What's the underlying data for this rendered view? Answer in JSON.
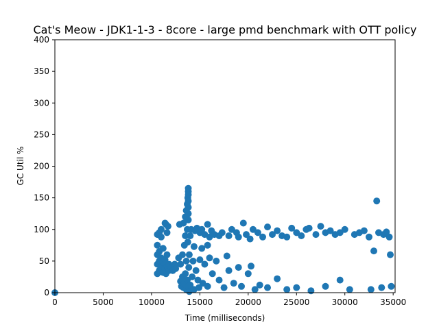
{
  "chart_data": {
    "type": "scatter",
    "title": "Cat's Meow - JDK1-1-3 - 8core -  large pmd benchmark with OTT policy",
    "xlabel": "Time (milliseconds)",
    "ylabel": "GC Util %",
    "xlim": [
      0,
      35200
    ],
    "ylim": [
      0,
      400
    ],
    "xticks": [
      0,
      5000,
      10000,
      15000,
      20000,
      25000,
      30000,
      35000
    ],
    "yticks": [
      0,
      50,
      100,
      150,
      200,
      250,
      300,
      350,
      400
    ],
    "grid": false,
    "legend": "none",
    "color": "#1f77b4",
    "series": [
      {
        "points": [
          [
            0,
            0
          ],
          [
            10600,
            30
          ],
          [
            10600,
            45
          ],
          [
            10600,
            60
          ],
          [
            10600,
            75
          ],
          [
            10600,
            92
          ],
          [
            10800,
            35
          ],
          [
            10800,
            50
          ],
          [
            10800,
            65
          ],
          [
            10800,
            95
          ],
          [
            11000,
            40
          ],
          [
            11000,
            55
          ],
          [
            11000,
            88
          ],
          [
            11000,
            100
          ],
          [
            11200,
            32
          ],
          [
            11200,
            48
          ],
          [
            11200,
            70
          ],
          [
            11400,
            38
          ],
          [
            11400,
            52
          ],
          [
            11400,
            110
          ],
          [
            11500,
            108
          ],
          [
            11500,
            30
          ],
          [
            11600,
            42
          ],
          [
            11600,
            60
          ],
          [
            11600,
            95
          ],
          [
            11700,
            105
          ],
          [
            11800,
            45
          ],
          [
            11800,
            35
          ],
          [
            12000,
            40
          ],
          [
            12200,
            35
          ],
          [
            12400,
            45
          ],
          [
            12500,
            38
          ],
          [
            12800,
            55
          ],
          [
            12900,
            108
          ],
          [
            13000,
            18
          ],
          [
            13000,
            45
          ],
          [
            13100,
            10
          ],
          [
            13200,
            25
          ],
          [
            13200,
            60
          ],
          [
            13300,
            110
          ],
          [
            13300,
            8
          ],
          [
            13400,
            15
          ],
          [
            13400,
            75
          ],
          [
            13500,
            30
          ],
          [
            13500,
            90
          ],
          [
            13500,
            120
          ],
          [
            13600,
            130
          ],
          [
            13600,
            50
          ],
          [
            13600,
            5
          ],
          [
            13700,
            140
          ],
          [
            13700,
            100
          ],
          [
            13700,
            20
          ],
          [
            13750,
            150
          ],
          [
            13750,
            80
          ],
          [
            13800,
            165
          ],
          [
            13800,
            160
          ],
          [
            13800,
            155
          ],
          [
            13800,
            145
          ],
          [
            13800,
            135
          ],
          [
            13800,
            125
          ],
          [
            13800,
            115
          ],
          [
            13800,
            10
          ],
          [
            13850,
            40
          ],
          [
            13900,
            60
          ],
          [
            13900,
            2
          ],
          [
            14000,
            12
          ],
          [
            14000,
            90
          ],
          [
            14100,
            100
          ],
          [
            14200,
            25
          ],
          [
            14300,
            50
          ],
          [
            14400,
            73
          ],
          [
            14400,
            5
          ],
          [
            14500,
            98
          ],
          [
            14600,
            35
          ],
          [
            14700,
            102
          ],
          [
            14800,
            20
          ],
          [
            14900,
            8
          ],
          [
            15000,
            95
          ],
          [
            15000,
            52
          ],
          [
            15200,
            70
          ],
          [
            15200,
            100
          ],
          [
            15300,
            15
          ],
          [
            15500,
            45
          ],
          [
            15500,
            92
          ],
          [
            15800,
            108
          ],
          [
            15800,
            75
          ],
          [
            15800,
            10
          ],
          [
            16000,
            55
          ],
          [
            16000,
            88
          ],
          [
            16200,
            98
          ],
          [
            16300,
            30
          ],
          [
            16500,
            92
          ],
          [
            16700,
            50
          ],
          [
            17000,
            90
          ],
          [
            17000,
            20
          ],
          [
            17300,
            95
          ],
          [
            17500,
            8
          ],
          [
            17800,
            58
          ],
          [
            18000,
            90
          ],
          [
            18000,
            35
          ],
          [
            18300,
            100
          ],
          [
            18500,
            15
          ],
          [
            18800,
            95
          ],
          [
            19000,
            40
          ],
          [
            19000,
            88
          ],
          [
            19300,
            10
          ],
          [
            19500,
            110
          ],
          [
            19800,
            92
          ],
          [
            20000,
            30
          ],
          [
            20200,
            85
          ],
          [
            20300,
            42
          ],
          [
            20500,
            100
          ],
          [
            20700,
            5
          ],
          [
            21000,
            95
          ],
          [
            21200,
            12
          ],
          [
            21500,
            88
          ],
          [
            22000,
            104
          ],
          [
            22000,
            8
          ],
          [
            22500,
            92
          ],
          [
            23000,
            22
          ],
          [
            23000,
            98
          ],
          [
            23500,
            90
          ],
          [
            24000,
            88
          ],
          [
            24000,
            5
          ],
          [
            24500,
            102
          ],
          [
            25000,
            95
          ],
          [
            25000,
            8
          ],
          [
            25500,
            90
          ],
          [
            26000,
            100
          ],
          [
            26300,
            102
          ],
          [
            26500,
            3
          ],
          [
            27000,
            92
          ],
          [
            27500,
            105
          ],
          [
            28000,
            95
          ],
          [
            28000,
            10
          ],
          [
            28500,
            98
          ],
          [
            29000,
            92
          ],
          [
            29500,
            20
          ],
          [
            29500,
            95
          ],
          [
            30000,
            100
          ],
          [
            30500,
            5
          ],
          [
            31000,
            92
          ],
          [
            31500,
            95
          ],
          [
            32000,
            98
          ],
          [
            32500,
            88
          ],
          [
            32700,
            5
          ],
          [
            33000,
            66
          ],
          [
            33300,
            145
          ],
          [
            33500,
            95
          ],
          [
            33800,
            8
          ],
          [
            34000,
            92
          ],
          [
            34300,
            96
          ],
          [
            34600,
            88
          ],
          [
            34700,
            60
          ],
          [
            34800,
            10
          ]
        ]
      }
    ]
  }
}
